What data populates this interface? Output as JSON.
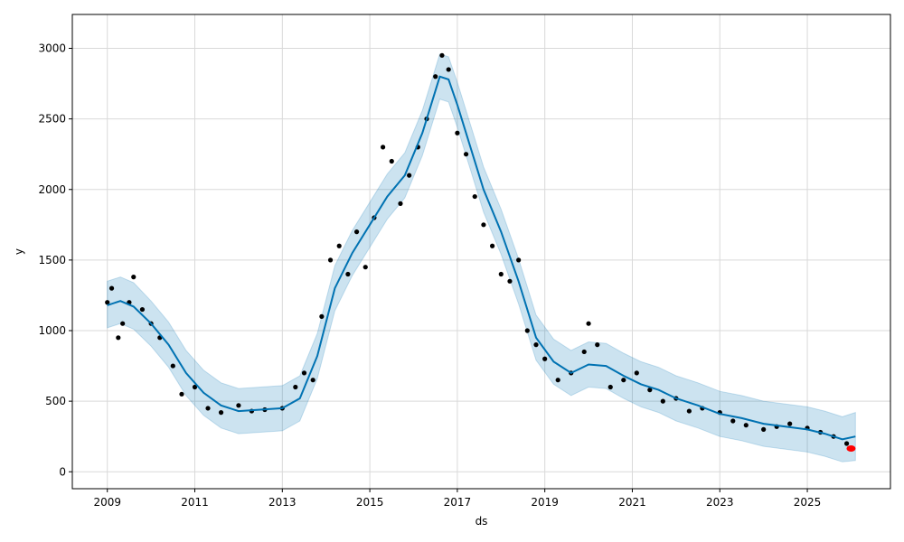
{
  "chart_data": {
    "type": "scatter",
    "title": "",
    "xlabel": "ds",
    "ylabel": "y",
    "xlim": [
      2008.2,
      2026.9
    ],
    "ylim": [
      -120,
      3240
    ],
    "xticks": [
      2009,
      2011,
      2013,
      2015,
      2017,
      2019,
      2021,
      2023,
      2025
    ],
    "xtick_labels": [
      "2009",
      "2011",
      "2013",
      "2015",
      "2017",
      "2019",
      "2021",
      "2023",
      "2025"
    ],
    "yticks": [
      0,
      500,
      1000,
      1500,
      2000,
      2500,
      3000
    ],
    "ytick_labels": [
      "0",
      "500",
      "1000",
      "1500",
      "2000",
      "2500",
      "3000"
    ],
    "grid": true,
    "colors": {
      "observed": "#000000",
      "forecast": "#0072B2",
      "interval": "#0072B2",
      "highlight": "#ff0000"
    },
    "series": [
      {
        "kind": "observed",
        "x": [
          2009.0,
          2009.1,
          2009.25,
          2009.35,
          2009.5,
          2009.6,
          2009.8,
          2010.0,
          2010.2,
          2010.5,
          2010.7,
          2011.0,
          2011.3,
          2011.6,
          2012.0,
          2012.3,
          2012.6,
          2013.0,
          2013.3,
          2013.5,
          2013.7,
          2013.9,
          2014.1,
          2014.3,
          2014.5,
          2014.7,
          2014.9,
          2015.1,
          2015.3,
          2015.5,
          2015.7,
          2015.9,
          2016.1,
          2016.3,
          2016.5,
          2016.65,
          2016.8,
          2017.0,
          2017.2,
          2017.4,
          2017.6,
          2017.8,
          2018.0,
          2018.2,
          2018.4,
          2018.6,
          2018.8,
          2019.0,
          2019.3,
          2019.6,
          2019.9,
          2020.0,
          2020.2,
          2020.5,
          2020.8,
          2021.1,
          2021.4,
          2021.7,
          2022.0,
          2022.3,
          2022.6,
          2023.0,
          2023.3,
          2023.6,
          2024.0,
          2024.3,
          2024.6,
          2025.0,
          2025.3,
          2025.6,
          2025.9
        ],
        "y": [
          1200,
          1300,
          950,
          1050,
          1200,
          1380,
          1150,
          1050,
          950,
          750,
          550,
          600,
          450,
          420,
          470,
          430,
          440,
          450,
          600,
          700,
          650,
          1100,
          1500,
          1600,
          1400,
          1700,
          1450,
          1800,
          2300,
          2200,
          1900,
          2100,
          2300,
          2500,
          2800,
          2950,
          2850,
          2400,
          2250,
          1950,
          1750,
          1600,
          1400,
          1350,
          1500,
          1000,
          900,
          800,
          650,
          700,
          850,
          1050,
          900,
          600,
          650,
          700,
          580,
          500,
          520,
          430,
          450,
          420,
          360,
          330,
          300,
          320,
          340,
          310,
          280,
          250,
          200
        ]
      },
      {
        "kind": "observed",
        "name": "",
        "x": [
          2026.0
        ],
        "y": [
          165
        ],
        "color": "#ff0000"
      },
      {
        "kind": "forecast",
        "x": [
          2009.0,
          2009.3,
          2009.6,
          2010.0,
          2010.4,
          2010.8,
          2011.2,
          2011.6,
          2012.0,
          2012.5,
          2013.0,
          2013.4,
          2013.8,
          2014.2,
          2014.6,
          2015.0,
          2015.4,
          2015.8,
          2016.2,
          2016.6,
          2016.8,
          2017.0,
          2017.3,
          2017.6,
          2018.0,
          2018.4,
          2018.8,
          2019.2,
          2019.6,
          2020.0,
          2020.4,
          2020.8,
          2021.2,
          2021.6,
          2022.0,
          2022.5,
          2023.0,
          2023.5,
          2024.0,
          2024.5,
          2025.0,
          2025.4,
          2025.8,
          2026.1
        ],
        "y": [
          1180,
          1210,
          1170,
          1050,
          900,
          700,
          560,
          470,
          430,
          440,
          450,
          520,
          820,
          1300,
          1550,
          1750,
          1950,
          2100,
          2400,
          2800,
          2780,
          2600,
          2300,
          2000,
          1700,
          1350,
          950,
          780,
          700,
          760,
          750,
          680,
          620,
          580,
          520,
          470,
          410,
          380,
          340,
          320,
          300,
          270,
          230,
          250
        ]
      },
      {
        "kind": "interval",
        "x": [
          2009.0,
          2009.3,
          2009.6,
          2010.0,
          2010.4,
          2010.8,
          2011.2,
          2011.6,
          2012.0,
          2012.5,
          2013.0,
          2013.4,
          2013.8,
          2014.2,
          2014.6,
          2015.0,
          2015.4,
          2015.8,
          2016.2,
          2016.6,
          2016.8,
          2017.0,
          2017.3,
          2017.6,
          2018.0,
          2018.4,
          2018.8,
          2019.2,
          2019.6,
          2020.0,
          2020.4,
          2020.8,
          2021.2,
          2021.6,
          2022.0,
          2022.5,
          2023.0,
          2023.5,
          2024.0,
          2024.5,
          2025.0,
          2025.4,
          2025.8,
          2026.1
        ],
        "upper": [
          1350,
          1380,
          1340,
          1210,
          1060,
          860,
          720,
          630,
          590,
          600,
          610,
          680,
          980,
          1460,
          1710,
          1910,
          2110,
          2260,
          2560,
          2960,
          2940,
          2760,
          2460,
          2160,
          1860,
          1510,
          1110,
          940,
          860,
          920,
          910,
          840,
          780,
          740,
          680,
          630,
          570,
          540,
          500,
          480,
          460,
          430,
          390,
          420
        ],
        "lower": [
          1020,
          1050,
          1010,
          890,
          740,
          540,
          400,
          310,
          270,
          280,
          290,
          360,
          660,
          1140,
          1390,
          1590,
          1790,
          1940,
          2240,
          2640,
          2620,
          2440,
          2140,
          1840,
          1540,
          1190,
          790,
          620,
          540,
          600,
          590,
          520,
          460,
          420,
          360,
          310,
          250,
          220,
          180,
          160,
          140,
          110,
          70,
          80
        ]
      }
    ]
  }
}
